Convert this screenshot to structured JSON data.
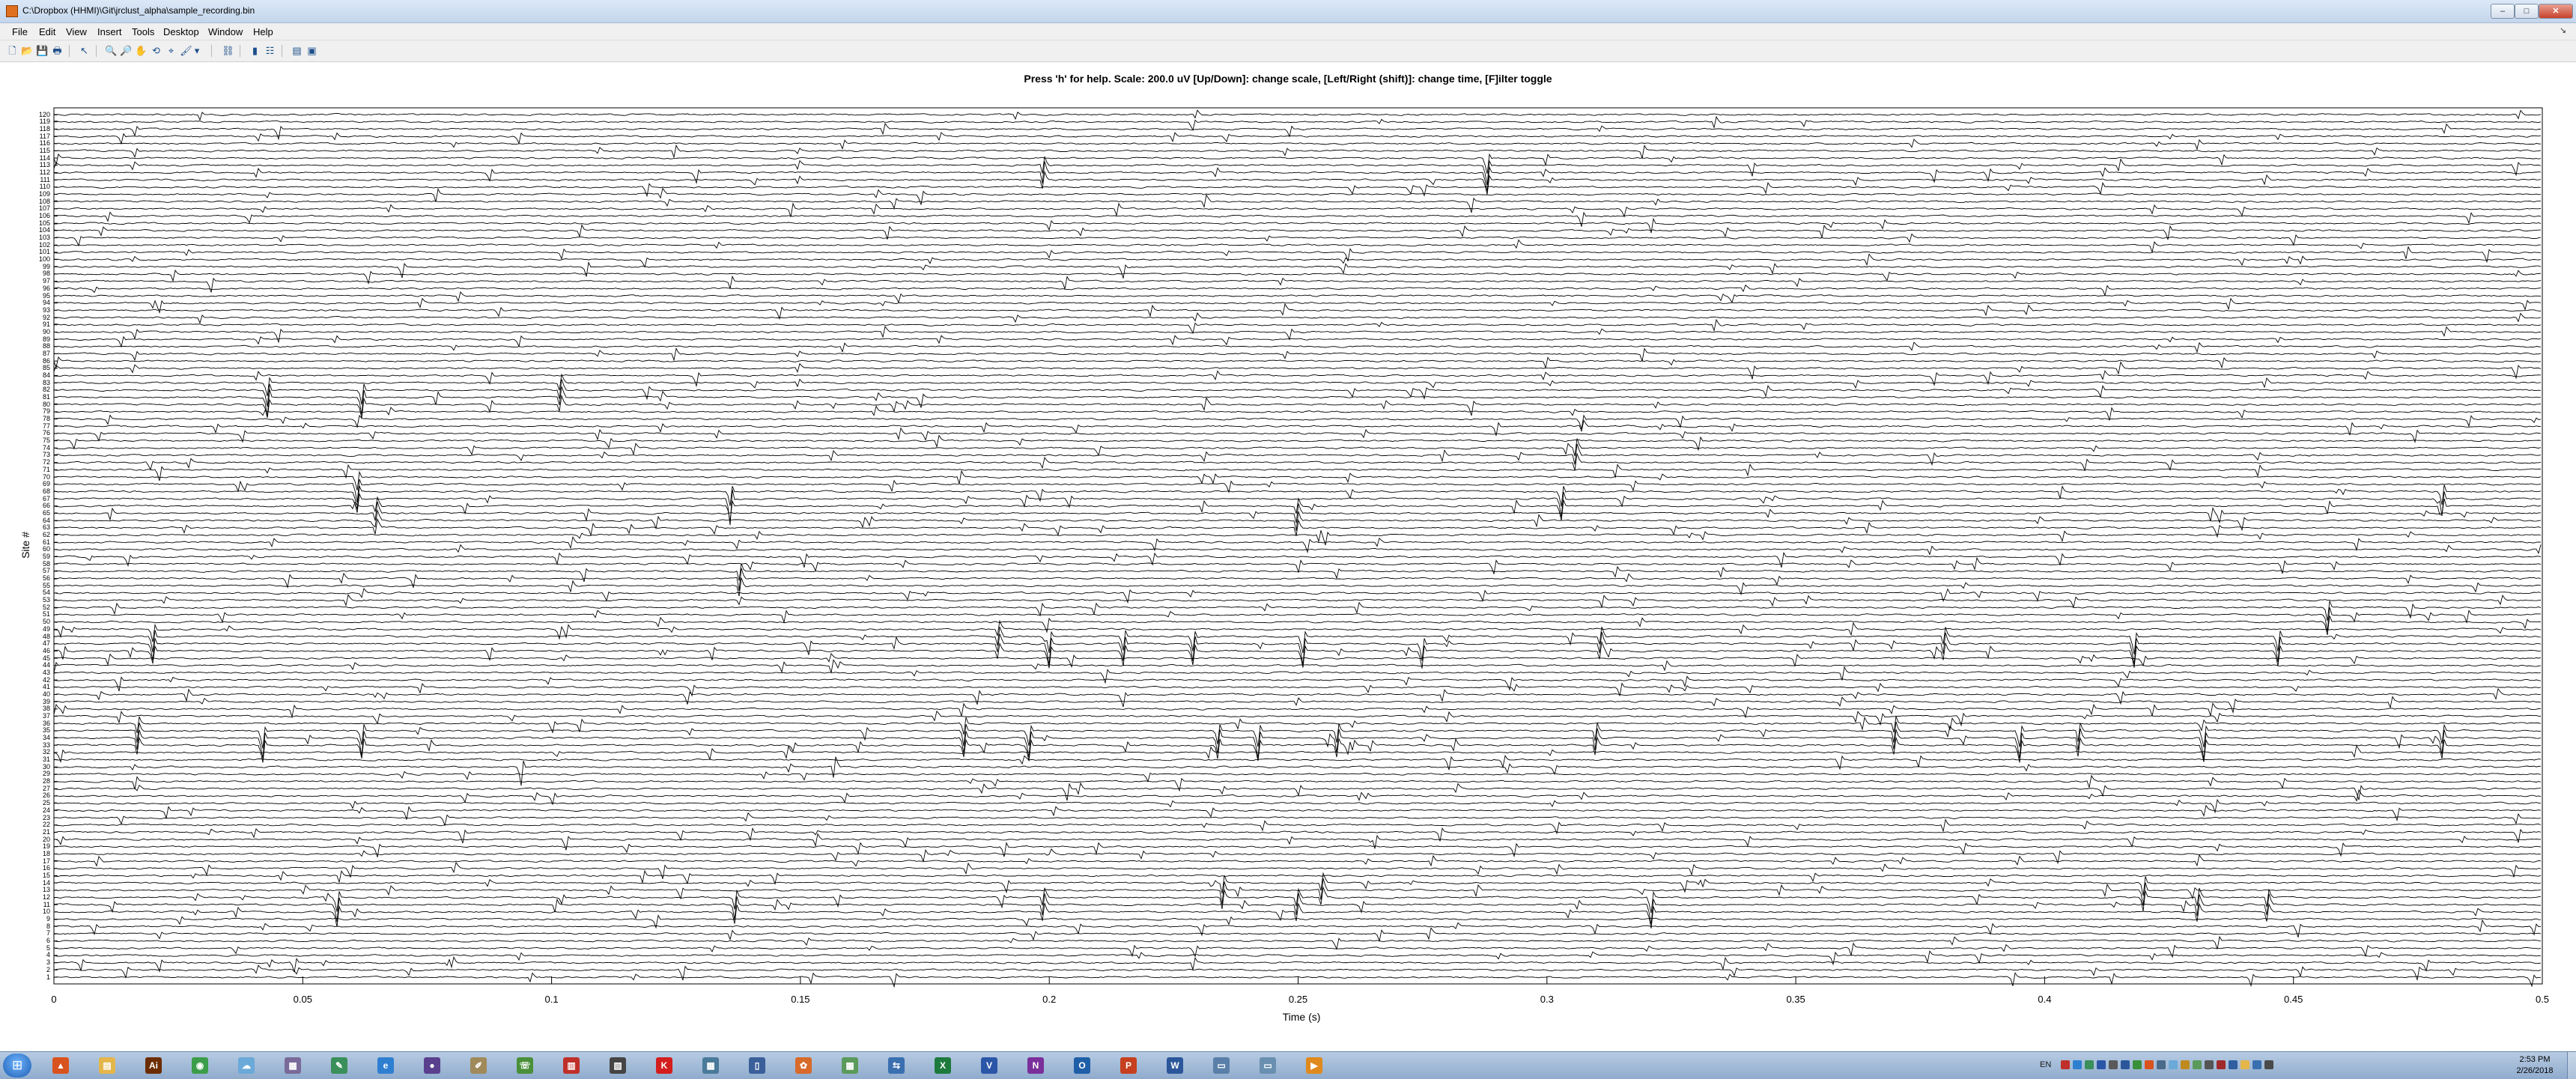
{
  "window": {
    "title": "C:\\Dropbox (HHMI)\\Git\\jrclust_alpha\\sample_recording.bin",
    "min_label": "–",
    "max_label": "□",
    "close_label": "✕",
    "dock_glyph": "↘"
  },
  "menu": [
    "File",
    "Edit",
    "View",
    "Insert",
    "Tools",
    "Desktop",
    "Window",
    "Help"
  ],
  "toolbar": [
    {
      "name": "new-figure-icon",
      "glyph": "🗋"
    },
    {
      "name": "open-file-icon",
      "glyph": "📂"
    },
    {
      "name": "save-icon",
      "glyph": "💾"
    },
    {
      "name": "print-icon",
      "glyph": "🖶"
    },
    {
      "name": "edit-plot-arrow-icon",
      "glyph": "↖"
    },
    {
      "name": "zoom-in-icon",
      "glyph": "🔍"
    },
    {
      "name": "zoom-out-icon",
      "glyph": "🔎"
    },
    {
      "name": "pan-hand-icon",
      "glyph": "✋"
    },
    {
      "name": "rotate-3d-icon",
      "glyph": "⟲"
    },
    {
      "name": "data-cursor-icon",
      "glyph": "⌖"
    },
    {
      "name": "brush-icon",
      "glyph": "🖌"
    },
    {
      "name": "brush-dropdown-icon",
      "glyph": "▾"
    },
    {
      "name": "link-plot-icon",
      "glyph": "⛓"
    },
    {
      "name": "insert-colorbar-icon",
      "glyph": "▮"
    },
    {
      "name": "insert-legend-icon",
      "glyph": "☷"
    },
    {
      "name": "hide-plot-tools-icon",
      "glyph": "▤"
    },
    {
      "name": "show-plot-tools-icon",
      "glyph": "▣"
    }
  ],
  "chart_data": {
    "type": "line",
    "title": "Press 'h' for help. Scale: 200.0 uV [Up/Down]: change scale, [Left/Right (shift)]: change time, [F]ilter toggle",
    "xlabel": "Time (s)",
    "ylabel": "Site #",
    "xlim": [
      0,
      0.5
    ],
    "ylim": [
      1,
      120
    ],
    "x_ticks": [
      "0",
      "0.05",
      "0.1",
      "0.15",
      "0.2",
      "0.25",
      "0.3",
      "0.35",
      "0.4",
      "0.45",
      "0.5"
    ],
    "y_ticks": [
      "1",
      "2",
      "3",
      "4",
      "5",
      "6",
      "7",
      "8",
      "9",
      "10",
      "11",
      "12",
      "13",
      "14",
      "15",
      "16",
      "17",
      "18",
      "19",
      "20",
      "21",
      "22",
      "23",
      "24",
      "25",
      "26",
      "27",
      "28",
      "29",
      "30",
      "31",
      "32",
      "33",
      "34",
      "35",
      "36",
      "37",
      "38",
      "39",
      "40",
      "41",
      "42",
      "43",
      "44",
      "45",
      "46",
      "47",
      "48",
      "49",
      "50",
      "51",
      "52",
      "53",
      "54",
      "55",
      "56",
      "57",
      "58",
      "59",
      "60",
      "61",
      "62",
      "63",
      "64",
      "65",
      "66",
      "67",
      "68",
      "69",
      "70",
      "71",
      "72",
      "73",
      "74",
      "75",
      "76",
      "77",
      "78",
      "79",
      "80",
      "81",
      "82",
      "83",
      "84",
      "85",
      "86",
      "87",
      "88",
      "89",
      "90",
      "91",
      "92",
      "93",
      "94",
      "95",
      "96",
      "97",
      "98",
      "99",
      "100",
      "101",
      "102",
      "103",
      "104",
      "105",
      "106",
      "107",
      "108",
      "109",
      "110",
      "111",
      "112",
      "113",
      "114",
      "115",
      "116",
      "117",
      "118",
      "119",
      "120"
    ],
    "n_channels": 120,
    "scale_uV": 200.0,
    "line_color": "#000000",
    "grid": false,
    "legend": "none",
    "spikes": [
      {
        "t": 0.043,
        "sites": [
          80,
          81,
          82,
          83
        ]
      },
      {
        "t": 0.062,
        "sites": [
          80,
          81,
          82
        ]
      },
      {
        "t": 0.102,
        "sites": [
          80,
          81,
          82,
          83
        ]
      },
      {
        "t": 0.061,
        "sites": [
          67,
          68,
          69,
          70
        ]
      },
      {
        "t": 0.065,
        "sites": [
          63,
          64,
          65,
          66
        ]
      },
      {
        "t": 0.136,
        "sites": [
          66,
          67,
          68
        ]
      },
      {
        "t": 0.138,
        "sites": [
          55,
          56,
          57
        ]
      },
      {
        "t": 0.02,
        "sites": [
          46,
          47,
          48,
          49
        ]
      },
      {
        "t": 0.017,
        "sites": [
          33,
          34,
          35,
          36
        ]
      },
      {
        "t": 0.042,
        "sites": [
          33,
          34,
          35
        ]
      },
      {
        "t": 0.062,
        "sites": [
          33,
          34,
          35
        ]
      },
      {
        "t": 0.094,
        "sites": [
          30
        ]
      },
      {
        "t": 0.157,
        "sites": [
          30
        ]
      },
      {
        "t": 0.183,
        "sites": [
          33,
          34,
          35,
          36
        ]
      },
      {
        "t": 0.196,
        "sites": [
          33,
          34,
          35
        ]
      },
      {
        "t": 0.19,
        "sites": [
          46,
          47,
          48,
          49
        ]
      },
      {
        "t": 0.2,
        "sites": [
          46,
          47,
          48
        ]
      },
      {
        "t": 0.215,
        "sites": [
          46,
          47,
          48
        ]
      },
      {
        "t": 0.229,
        "sites": [
          46,
          47,
          48
        ]
      },
      {
        "t": 0.234,
        "sites": [
          33,
          34,
          35
        ]
      },
      {
        "t": 0.242,
        "sites": [
          33,
          34,
          35
        ]
      },
      {
        "t": 0.25,
        "sites": [
          63,
          64,
          65,
          66
        ]
      },
      {
        "t": 0.251,
        "sites": [
          46,
          47,
          48
        ]
      },
      {
        "t": 0.258,
        "sites": [
          33,
          34,
          35
        ]
      },
      {
        "t": 0.275,
        "sites": [
          46,
          47
        ]
      },
      {
        "t": 0.288,
        "sites": [
          111,
          112,
          113,
          114
        ]
      },
      {
        "t": 0.199,
        "sites": [
          111,
          112,
          113
        ]
      },
      {
        "t": 0.303,
        "sites": [
          66,
          67,
          68
        ]
      },
      {
        "t": 0.306,
        "sites": [
          72,
          73,
          74
        ]
      },
      {
        "t": 0.311,
        "sites": [
          46,
          47,
          48
        ]
      },
      {
        "t": 0.31,
        "sites": [
          33,
          34,
          35
        ]
      },
      {
        "t": 0.37,
        "sites": [
          33,
          34,
          35,
          36
        ]
      },
      {
        "t": 0.38,
        "sites": [
          46,
          47,
          48
        ]
      },
      {
        "t": 0.395,
        "sites": [
          33,
          34,
          35
        ]
      },
      {
        "t": 0.407,
        "sites": [
          33,
          34,
          35
        ]
      },
      {
        "t": 0.418,
        "sites": [
          46,
          47,
          48
        ]
      },
      {
        "t": 0.432,
        "sites": [
          33,
          34,
          35
        ]
      },
      {
        "t": 0.447,
        "sites": [
          46,
          47,
          48
        ]
      },
      {
        "t": 0.457,
        "sites": [
          50,
          51,
          52
        ]
      },
      {
        "t": 0.48,
        "sites": [
          66,
          67,
          68
        ]
      },
      {
        "t": 0.48,
        "sites": [
          33,
          34,
          35
        ]
      },
      {
        "t": 0.057,
        "sites": [
          10,
          11,
          12
        ]
      },
      {
        "t": 0.137,
        "sites": [
          10,
          11,
          12
        ]
      },
      {
        "t": 0.199,
        "sites": [
          10,
          11,
          12
        ]
      },
      {
        "t": 0.235,
        "sites": [
          12,
          13,
          14
        ]
      },
      {
        "t": 0.25,
        "sites": [
          10,
          11,
          12
        ]
      },
      {
        "t": 0.255,
        "sites": [
          12,
          13,
          14
        ]
      },
      {
        "t": 0.321,
        "sites": [
          10,
          11,
          12
        ]
      },
      {
        "t": 0.42,
        "sites": [
          12,
          13,
          14
        ]
      },
      {
        "t": 0.431,
        "sites": [
          10,
          11,
          12
        ]
      },
      {
        "t": 0.445,
        "sites": [
          10,
          11,
          12
        ]
      }
    ]
  },
  "taskbar": {
    "apps": [
      {
        "name": "matlab-icon",
        "glyph": "▲",
        "color": "#d9531e"
      },
      {
        "name": "file-explorer-icon",
        "glyph": "▤",
        "color": "#e4b64a"
      },
      {
        "name": "illustrator-icon",
        "glyph": "Ai",
        "color": "#6b2d00"
      },
      {
        "name": "chrome-icon",
        "glyph": "◉",
        "color": "#3b9d4a"
      },
      {
        "name": "network-tool-icon",
        "glyph": "☁",
        "color": "#6aa9d8"
      },
      {
        "name": "scanner-icon",
        "glyph": "▦",
        "color": "#7a6a9a"
      },
      {
        "name": "notepad-icon",
        "glyph": "✎",
        "color": "#3a8f5a"
      },
      {
        "name": "internet-explorer-icon",
        "glyph": "e",
        "color": "#2f7fd1"
      },
      {
        "name": "media-app-icon",
        "glyph": "●",
        "color": "#5a3f8f"
      },
      {
        "name": "paint-icon",
        "glyph": "✐",
        "color": "#a08a5a"
      },
      {
        "name": "phone-icon",
        "glyph": "☏",
        "color": "#4a8f3a"
      },
      {
        "name": "books-icon",
        "glyph": "▥",
        "color": "#c0302a"
      },
      {
        "name": "bookshelf-icon",
        "glyph": "▧",
        "color": "#444444"
      },
      {
        "name": "k-app-icon",
        "glyph": "K",
        "color": "#d41e1e"
      },
      {
        "name": "calculator-icon",
        "glyph": "▦",
        "color": "#4a7a9a"
      },
      {
        "name": "library-icon",
        "glyph": "▯",
        "color": "#3a5f9a"
      },
      {
        "name": "color-app-icon",
        "glyph": "✿",
        "color": "#d86a2a"
      },
      {
        "name": "map-app-icon",
        "glyph": "▩",
        "color": "#5a9a5a"
      },
      {
        "name": "remote-icon",
        "glyph": "⇆",
        "color": "#3a6fb0"
      },
      {
        "name": "excel-icon",
        "glyph": "X",
        "color": "#1d7a3d"
      },
      {
        "name": "visio-icon",
        "glyph": "V",
        "color": "#2b56a8"
      },
      {
        "name": "onenote-icon",
        "glyph": "N",
        "color": "#7a2f9a"
      },
      {
        "name": "outlook-icon",
        "glyph": "O",
        "color": "#1f5fa8"
      },
      {
        "name": "powerpoint-icon",
        "glyph": "P",
        "color": "#c6401f"
      },
      {
        "name": "word-icon",
        "glyph": "W",
        "color": "#2b579a"
      },
      {
        "name": "figure-window-icon",
        "glyph": "▭",
        "color": "#5a7fa8"
      },
      {
        "name": "folder-window-icon",
        "glyph": "▭",
        "color": "#6a8fb0"
      },
      {
        "name": "vlc-icon",
        "glyph": "▶",
        "color": "#e08a1e"
      }
    ],
    "tray": {
      "lang": "EN",
      "icons": [
        {
          "name": "acrobat-tray-icon",
          "color": "#c0302a"
        },
        {
          "name": "dropbox-tray-icon",
          "color": "#2f7fd1"
        },
        {
          "name": "sync-tray-icon",
          "color": "#3a8f5a"
        },
        {
          "name": "bluetooth-tray-icon",
          "color": "#2b56a8"
        },
        {
          "name": "printer-tray-icon",
          "color": "#5a5a5a"
        },
        {
          "name": "display-tray-icon",
          "color": "#2b579a"
        },
        {
          "name": "security-tray-icon",
          "color": "#3a8f3a"
        },
        {
          "name": "app-tray-icon",
          "color": "#d9531e"
        },
        {
          "name": "network-tray-icon",
          "color": "#4a6a8a"
        },
        {
          "name": "cloud-tray-icon",
          "color": "#6aa9d8"
        },
        {
          "name": "update-tray-icon",
          "color": "#c08a1e"
        },
        {
          "name": "battery-tray-icon",
          "color": "#5a9a5a"
        },
        {
          "name": "usb-tray-icon",
          "color": "#555555"
        },
        {
          "name": "antivirus-tray-icon",
          "color": "#a02a2a"
        },
        {
          "name": "disk-tray-icon",
          "color": "#2f5fa0"
        },
        {
          "name": "flag-tray-icon",
          "color": "#e4b64a"
        },
        {
          "name": "signal-tray-icon",
          "color": "#3a6fb0"
        },
        {
          "name": "volume-tray-icon",
          "color": "#4a4a4a"
        }
      ]
    },
    "clock": {
      "time": "2:53 PM",
      "date": "2/26/2018"
    }
  }
}
